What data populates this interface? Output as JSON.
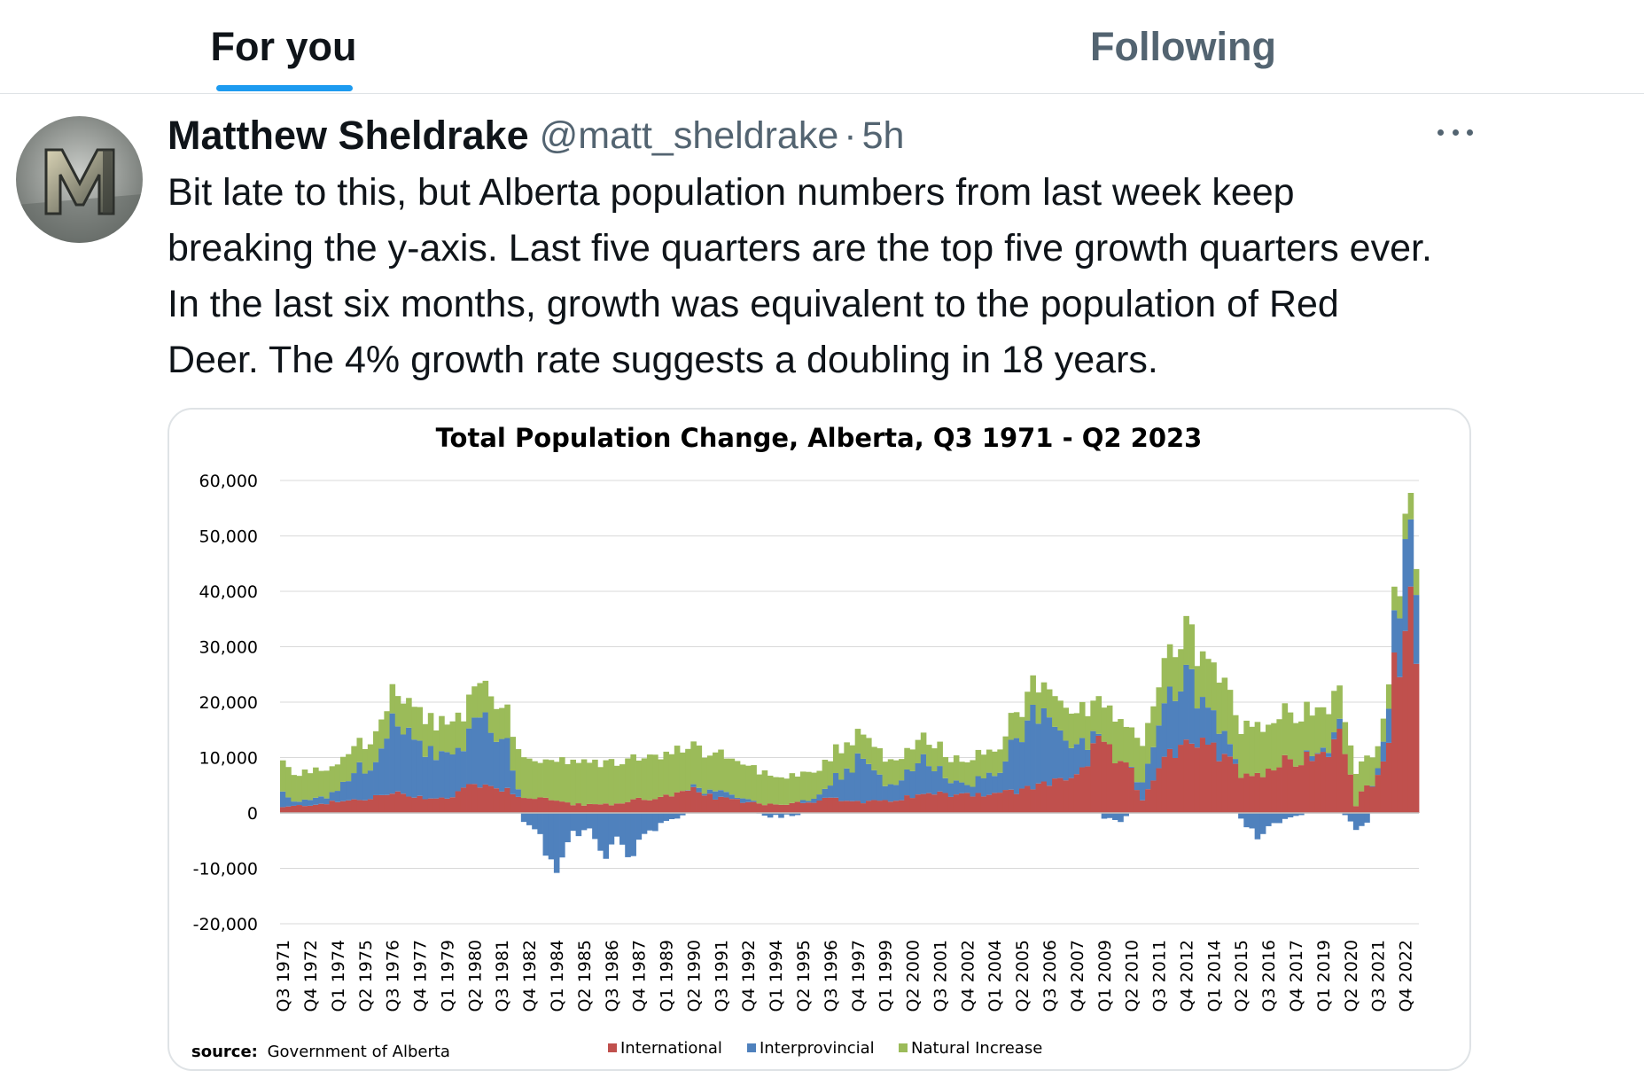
{
  "tabs": [
    {
      "label": "For you",
      "active": true
    },
    {
      "label": "Following",
      "active": false
    }
  ],
  "tweet": {
    "author_name": "Matthew Sheldrake",
    "handle": "@matt_sheldrake",
    "separator": "·",
    "time": "5h",
    "avatar_icon": "avatar-letter-m-icon",
    "more_icon": "more-horizontal-icon",
    "text_lines": [
      "Bit late to this, but Alberta population numbers from last week keep",
      "breaking the y-axis. Last five quarters are the top five growth quarters ever.",
      "In the last six months, growth was equivalent to the population of Red",
      "Deer. The 4% growth rate suggests a doubling in 18 years."
    ]
  },
  "colors": {
    "accent": "#1d9bf0",
    "international": "#c0504d",
    "interprovincial": "#4f81bd",
    "natural": "#9bbb59"
  },
  "chart_data": {
    "type": "bar",
    "stacked": true,
    "title": "Total Population Change, Alberta, Q3 1971 - Q2 2023",
    "source_label": "source:",
    "source_text": "Government of Alberta",
    "ylim": [
      -20000,
      60000
    ],
    "yticks": [
      "60,000",
      "50,000",
      "40,000",
      "30,000",
      "20,000",
      "10,000",
      "0",
      "-10,000",
      "-20,000"
    ],
    "ytick_values": [
      60000,
      50000,
      40000,
      30000,
      20000,
      10000,
      0,
      -10000,
      -20000
    ],
    "x_start": {
      "year": 1971,
      "quarter": 3
    },
    "x_end": {
      "year": 2023,
      "quarter": 2
    },
    "xtick_labels": [
      "Q3 1971",
      "Q4 1972",
      "Q1 1974",
      "Q2 1975",
      "Q3 1976",
      "Q4 1977",
      "Q1 1979",
      "Q2 1980",
      "Q3 1981",
      "Q4 1982",
      "Q1 1984",
      "Q2 1985",
      "Q3 1986",
      "Q4 1987",
      "Q1 1989",
      "Q2 1990",
      "Q3 1991",
      "Q4 1992",
      "Q1 1994",
      "Q2 1995",
      "Q3 1996",
      "Q4 1997",
      "Q1 1999",
      "Q2 2000",
      "Q3 2001",
      "Q4 2002",
      "Q1 2004",
      "Q2 2005",
      "Q3 2006",
      "Q4 2007",
      "Q1 2009",
      "Q2 2010",
      "Q3 2011",
      "Q4 2012",
      "Q1 2014",
      "Q2 2015",
      "Q3 2016",
      "Q4 2017",
      "Q1 2019",
      "Q2 2020",
      "Q3 2021",
      "Q4 2022"
    ],
    "legend_position": "bottom",
    "series": [
      {
        "name": "International",
        "color": "#c0504d",
        "anchors": [
          [
            1971.5,
            1000
          ],
          [
            1972.75,
            1500
          ],
          [
            1974,
            2000
          ],
          [
            1975.25,
            2500
          ],
          [
            1976.5,
            3500
          ],
          [
            1977.75,
            3000
          ],
          [
            1979,
            2500
          ],
          [
            1980.25,
            5500
          ],
          [
            1981.5,
            4500
          ],
          [
            1982.5,
            3000
          ],
          [
            1983.5,
            2500
          ],
          [
            1985,
            1500
          ],
          [
            1986.5,
            1500
          ],
          [
            1987.75,
            2500
          ],
          [
            1989,
            3000
          ],
          [
            1990.25,
            4000
          ],
          [
            1991.5,
            2500
          ],
          [
            1992.75,
            2000
          ],
          [
            1994,
            1500
          ],
          [
            1995.25,
            2000
          ],
          [
            1996.5,
            2500
          ],
          [
            1997.75,
            2000
          ],
          [
            1999,
            2000
          ],
          [
            2000.25,
            3000
          ],
          [
            2001.5,
            3500
          ],
          [
            2002.75,
            3500
          ],
          [
            2004,
            3500
          ],
          [
            2005.25,
            4000
          ],
          [
            2006.5,
            5500
          ],
          [
            2007.75,
            7000
          ],
          [
            2008.75,
            12000
          ],
          [
            2009.5,
            10000
          ],
          [
            2010.25,
            7000
          ],
          [
            2010.75,
            2500
          ],
          [
            2011.5,
            9000
          ],
          [
            2012.5,
            11000
          ],
          [
            2013.25,
            13000
          ],
          [
            2014,
            11000
          ],
          [
            2014.75,
            9000
          ],
          [
            2015.5,
            7000
          ],
          [
            2016.5,
            8000
          ],
          [
            2017.75,
            10000
          ],
          [
            2019,
            11000
          ],
          [
            2019.75,
            14000
          ],
          [
            2020.25,
            7000
          ],
          [
            2020.5,
            1500
          ],
          [
            2020.75,
            4000
          ],
          [
            2021.5,
            6000
          ],
          [
            2021.75,
            10000
          ],
          [
            2022,
            13000
          ],
          [
            2022.25,
            25000
          ],
          [
            2022.75,
            31000
          ],
          [
            2023,
            35000
          ],
          [
            2023.25,
            30000
          ]
        ]
      },
      {
        "name": "Interprovincial",
        "color": "#4f81bd",
        "anchors": [
          [
            1971.5,
            3000
          ],
          [
            1972,
            500
          ],
          [
            1973,
            1000
          ],
          [
            1974,
            1500
          ],
          [
            1974.75,
            5500
          ],
          [
            1975.75,
            6000
          ],
          [
            1976.5,
            12000
          ],
          [
            1977.5,
            10000
          ],
          [
            1978.75,
            7000
          ],
          [
            1979.75,
            8000
          ],
          [
            1980.25,
            13000
          ],
          [
            1981,
            10000
          ],
          [
            1981.5,
            12000
          ],
          [
            1982,
            4000
          ],
          [
            1982.5,
            -1500
          ],
          [
            1983.25,
            -4000
          ],
          [
            1984,
            -10000
          ],
          [
            1984.75,
            -3000
          ],
          [
            1985.5,
            -4000
          ],
          [
            1986.25,
            -9000
          ],
          [
            1986.75,
            -5000
          ],
          [
            1987.25,
            -10000
          ],
          [
            1987.75,
            -4000
          ],
          [
            1988.5,
            -2500
          ],
          [
            1989.25,
            -1000
          ],
          [
            1990.25,
            500
          ],
          [
            1991.25,
            1000
          ],
          [
            1992.5,
            500
          ],
          [
            1993.5,
            -500
          ],
          [
            1994.5,
            -500
          ],
          [
            1995.5,
            500
          ],
          [
            1996.25,
            2000
          ],
          [
            1997.25,
            6000
          ],
          [
            1998,
            8000
          ],
          [
            1999,
            3000
          ],
          [
            2000,
            5000
          ],
          [
            2001,
            6000
          ],
          [
            2001.75,
            3000
          ],
          [
            2002.75,
            2000
          ],
          [
            2004,
            3500
          ],
          [
            2005,
            9000
          ],
          [
            2006.25,
            15000
          ],
          [
            2007,
            9000
          ],
          [
            2008,
            4000
          ],
          [
            2009,
            -1000
          ],
          [
            2009.75,
            -1500
          ],
          [
            2010.5,
            1000
          ],
          [
            2011.25,
            6000
          ],
          [
            2012.25,
            11000
          ],
          [
            2012.75,
            12000
          ],
          [
            2013.5,
            8000
          ],
          [
            2014.25,
            6000
          ],
          [
            2014.75,
            2000
          ],
          [
            2015.25,
            -1000
          ],
          [
            2016,
            -4000
          ],
          [
            2016.75,
            -2000
          ],
          [
            2017.5,
            -500
          ],
          [
            2018.5,
            500
          ],
          [
            2019.25,
            500
          ],
          [
            2019.75,
            1500
          ],
          [
            2020.25,
            -1500
          ],
          [
            2020.75,
            -3000
          ],
          [
            2021.25,
            500
          ],
          [
            2021.75,
            3000
          ],
          [
            2022.25,
            8000
          ],
          [
            2022.75,
            14000
          ],
          [
            2023.25,
            12000
          ]
        ]
      },
      {
        "name": "Natural Increase",
        "color": "#9bbb59",
        "anchors": [
          [
            1971.5,
            5000
          ],
          [
            1975,
            5000
          ],
          [
            1981,
            6000
          ],
          [
            1985,
            7500
          ],
          [
            1990,
            7500
          ],
          [
            1995,
            5000
          ],
          [
            2000,
            4000
          ],
          [
            2005,
            4500
          ],
          [
            2008,
            6000
          ],
          [
            2012,
            8000
          ],
          [
            2015,
            9000
          ],
          [
            2019,
            8000
          ],
          [
            2020.25,
            6000
          ],
          [
            2021.5,
            4500
          ],
          [
            2023.25,
            4500
          ]
        ]
      }
    ]
  }
}
